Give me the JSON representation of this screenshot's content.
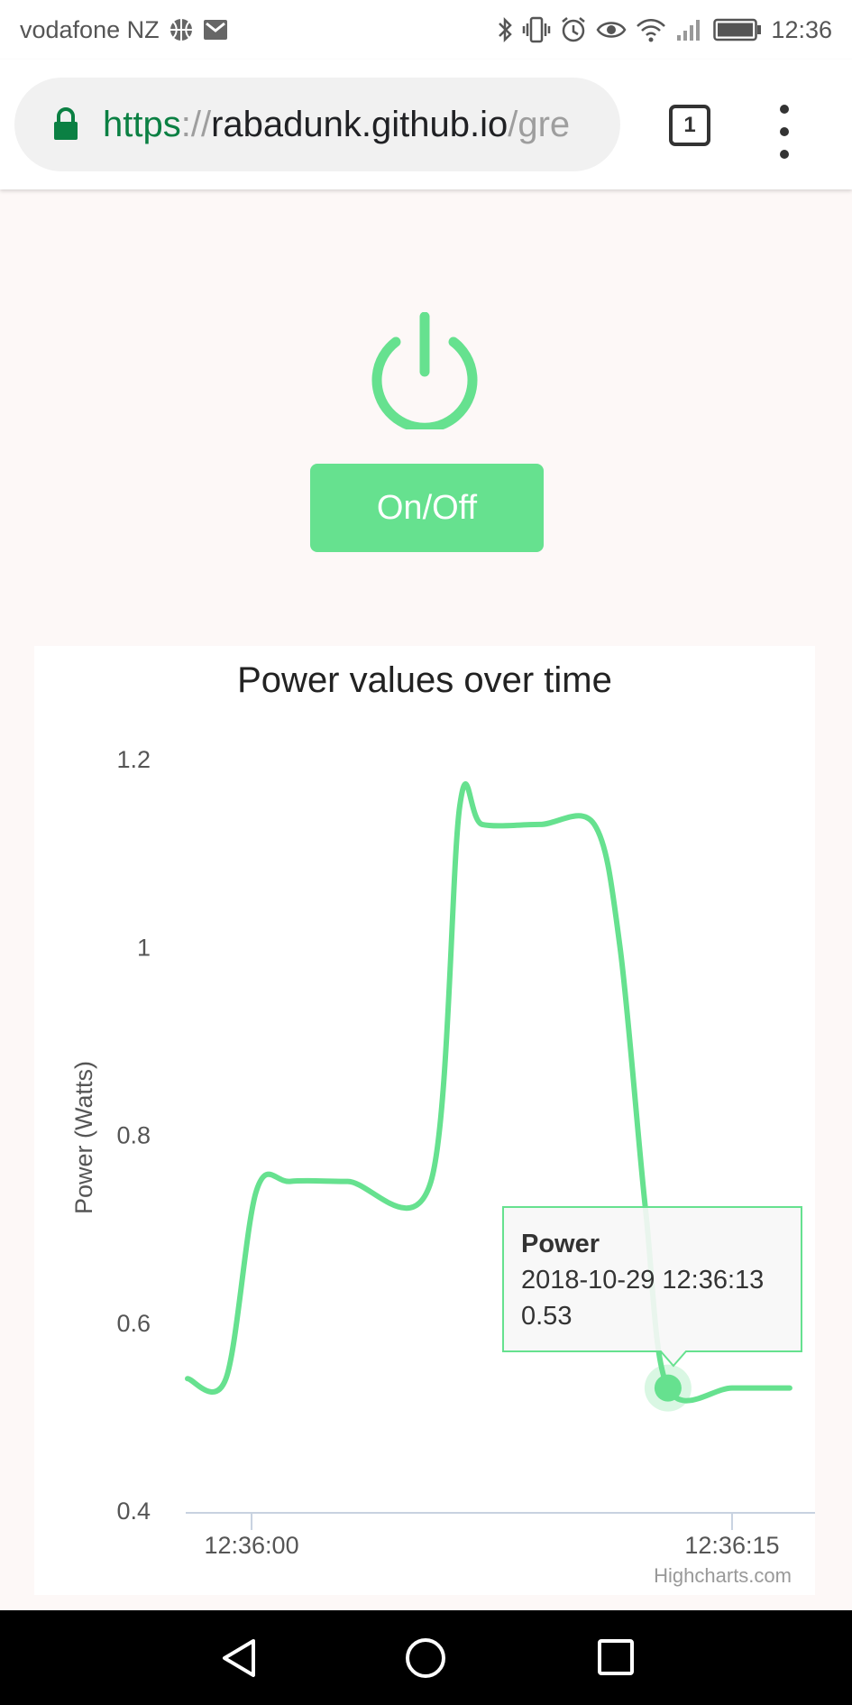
{
  "status_bar": {
    "carrier": "vodafone NZ",
    "time": "12:36",
    "icons": [
      "basketball-icon",
      "gmail-icon",
      "bluetooth-icon",
      "vibrate-icon",
      "alarm-icon",
      "eye-icon",
      "wifi-icon",
      "signal-icon",
      "battery-icon"
    ]
  },
  "browser": {
    "url_scheme": "https",
    "url_sep": "://",
    "url_host": "rabadunk.github.io",
    "url_path": "/gre",
    "tab_count": "1",
    "accent_secure": "#0b8043"
  },
  "page": {
    "power_icon": "power-icon",
    "button_label": "On/Off",
    "accent": "#66e18f"
  },
  "chart_data": {
    "type": "line",
    "title": "Power values over time",
    "ylabel": "Power (Watts)",
    "xlabel": "",
    "ylim": [
      0.4,
      1.2
    ],
    "yticks": [
      "1.2",
      "1",
      "0.8",
      "0.6",
      "0.4"
    ],
    "xticks": [
      {
        "t": 0,
        "label": "12:36:00"
      },
      {
        "t": 15,
        "label": "12:36:15"
      }
    ],
    "series": [
      {
        "name": "Power",
        "color": "#66e18f",
        "points": [
          [
            -2,
            0.54
          ],
          [
            -0.8,
            0.54
          ],
          [
            0.15,
            0.74
          ],
          [
            1.2,
            0.75
          ],
          [
            3,
            0.75
          ],
          [
            5.6,
            0.75
          ],
          [
            6.5,
            1.15
          ],
          [
            7.2,
            1.13
          ],
          [
            9,
            1.13
          ],
          [
            10.7,
            1.13
          ],
          [
            11.5,
            1.0
          ],
          [
            12.3,
            0.72
          ],
          [
            13,
            0.53
          ],
          [
            15,
            0.53
          ],
          [
            16.8,
            0.53
          ]
        ]
      }
    ],
    "tooltip": {
      "series": "Power",
      "time": "2018-10-29 12:36:13",
      "value": "0.53",
      "point_t": 13,
      "point_y": 0.53
    },
    "credits": "Highcharts.com",
    "grid": false,
    "legend": "none"
  },
  "nav_bar": {
    "icons": [
      "back-icon",
      "home-icon",
      "recents-icon"
    ]
  }
}
